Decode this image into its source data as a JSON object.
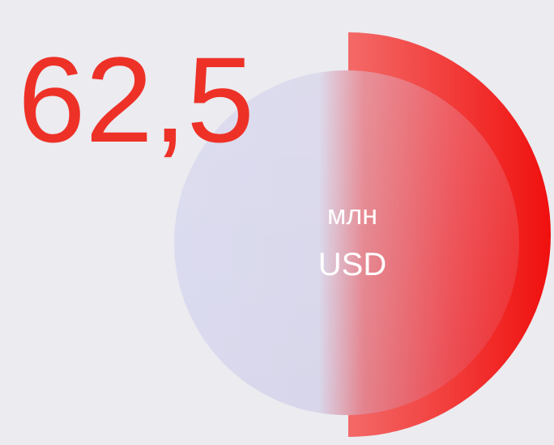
{
  "value": "62,5",
  "unit": "млн",
  "currency": "USD"
}
